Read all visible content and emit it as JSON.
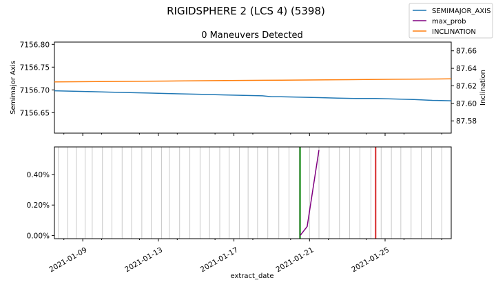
{
  "chart_data": [
    {
      "type": "line",
      "title": "RIGIDSPHERE 2 (LCS 4) (5398)",
      "subtitle": "0 Maneuvers Detected",
      "ylabel": "Semimajor Axis",
      "y2label": "Inclination",
      "ylim": [
        7156.605,
        7156.805
      ],
      "y2lim": [
        87.566,
        87.67
      ],
      "xlim": [
        "2021-01-07T12:00",
        "2021-01-28T12:00"
      ],
      "yticks": [
        "7156.65",
        "7156.70",
        "7156.75",
        "7156.80"
      ],
      "y2ticks": [
        "87.58",
        "87.60",
        "87.62",
        "87.64",
        "87.66"
      ],
      "legend_position": "top-right",
      "series": [
        {
          "name": "SEMIMAJOR_AXIS",
          "axis": "left",
          "color": "#1f77b4",
          "x": [
            "2021-01-07T12:00",
            "2021-01-08T12:00",
            "2021-01-09T12:00",
            "2021-01-10T12:00",
            "2021-01-11T12:00",
            "2021-01-12T12:00",
            "2021-01-13T12:00",
            "2021-01-14T12:00",
            "2021-01-15T12:00",
            "2021-01-16T12:00",
            "2021-01-17T12:00",
            "2021-01-18T12:00",
            "2021-01-19T00:00",
            "2021-01-19T12:00",
            "2021-01-20T12:00",
            "2021-01-21T12:00",
            "2021-01-22T12:00",
            "2021-01-23T12:00",
            "2021-01-24T12:00",
            "2021-01-25T12:00",
            "2021-01-26T12:00",
            "2021-01-27T12:00",
            "2021-01-28T12:00"
          ],
          "values": [
            7156.698,
            7156.697,
            7156.696,
            7156.695,
            7156.694,
            7156.693,
            7156.692,
            7156.691,
            7156.69,
            7156.689,
            7156.688,
            7156.687,
            7156.685,
            7156.685,
            7156.684,
            7156.683,
            7156.682,
            7156.681,
            7156.681,
            7156.68,
            7156.679,
            7156.677,
            7156.676
          ]
        },
        {
          "name": "INCLINATION",
          "axis": "right",
          "color": "#ff7f0e",
          "x": [
            "2021-01-07T12:00",
            "2021-01-10T12:00",
            "2021-01-13T12:00",
            "2021-01-16T12:00",
            "2021-01-19T12:00",
            "2021-01-22T12:00",
            "2021-01-25T12:00",
            "2021-01-28T12:00"
          ],
          "values": [
            87.6245,
            87.625,
            87.6255,
            87.626,
            87.6265,
            87.627,
            87.6275,
            87.628
          ]
        }
      ]
    },
    {
      "type": "line",
      "xlabel": "extract_date",
      "ylim": [
        -0.0002,
        0.0058
      ],
      "yticks": [
        "0.00%",
        "0.20%",
        "0.40%"
      ],
      "xticks": [
        "2021-01-09",
        "2021-01-13",
        "2021-01-17",
        "2021-01-21",
        "2021-01-25"
      ],
      "series": [
        {
          "name": "max_prob",
          "color": "#800080",
          "x": [
            "2021-01-20T12:00",
            "2021-01-20T21:00",
            "2021-01-21T12:00"
          ],
          "values": [
            0.0,
            0.0006,
            0.0056
          ]
        }
      ],
      "event_lines": {
        "color": "#c8c8c8",
        "x": [
          "2021-01-07T17:00",
          "2021-01-08T05:00",
          "2021-01-08T16:00",
          "2021-01-09T03:00",
          "2021-01-09T12:00",
          "2021-01-10T01:00",
          "2021-01-10T13:00",
          "2021-01-11T02:00",
          "2021-01-11T14:00",
          "2021-01-12T03:00",
          "2021-01-12T15:00",
          "2021-01-13T04:00",
          "2021-01-13T14:00",
          "2021-01-14T03:00",
          "2021-01-14T16:00",
          "2021-01-15T05:00",
          "2021-01-15T17:00",
          "2021-01-16T06:00",
          "2021-01-16T18:00",
          "2021-01-17T07:00",
          "2021-01-17T18:00",
          "2021-01-18T06:00",
          "2021-01-18T19:00",
          "2021-01-19T09:00",
          "2021-01-19T22:00",
          "2021-01-20T11:00",
          "2021-01-21T00:00",
          "2021-01-21T12:00",
          "2021-01-22T01:00",
          "2021-01-22T14:00",
          "2021-01-23T03:00",
          "2021-01-23T16:00",
          "2021-01-24T06:00",
          "2021-01-24T19:00",
          "2021-01-25T08:00",
          "2021-01-25T20:00",
          "2021-01-26T09:00",
          "2021-01-26T22:00",
          "2021-01-27T11:00",
          "2021-01-28T00:00"
        ]
      },
      "markers": [
        {
          "x": "2021-01-20T12:00",
          "color": "#008000"
        },
        {
          "x": "2021-01-24T12:00",
          "color": "#d62728"
        }
      ]
    }
  ],
  "legend": [
    {
      "label": "SEMIMAJOR_AXIS",
      "color": "#1f77b4"
    },
    {
      "label": "max_prob",
      "color": "#800080"
    },
    {
      "label": "INCLINATION",
      "color": "#ff7f0e"
    }
  ]
}
